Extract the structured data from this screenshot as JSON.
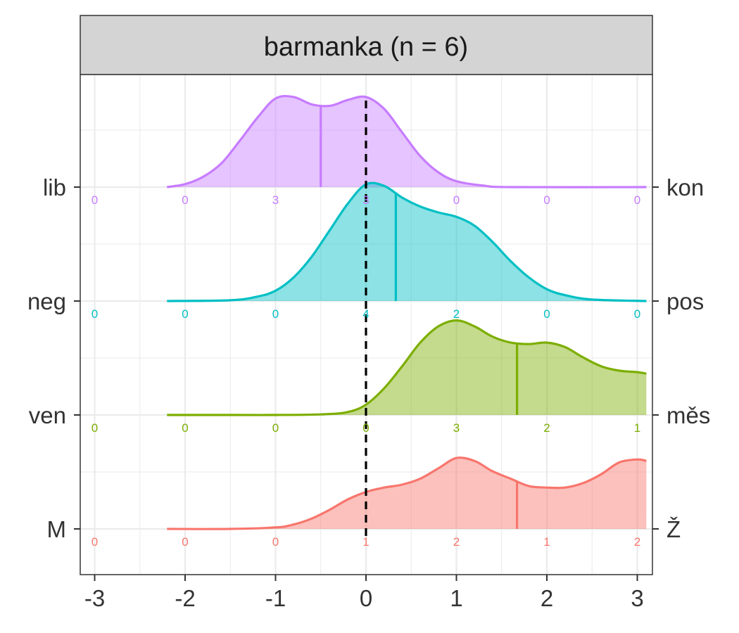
{
  "chart_data": {
    "type": "ridgeline",
    "title": "barmanka (n = 6)",
    "xlim": [
      -3,
      3
    ],
    "x_ticks": [
      "-3",
      "-2",
      "-1",
      "0",
      "1",
      "2",
      "3"
    ],
    "reference_line": 0,
    "grid": true,
    "series": [
      {
        "left_label": "M",
        "right_label": "Ž",
        "color": "#F8766D",
        "mean": 1.67,
        "density_points": [
          [
            -2.2,
            0
          ],
          [
            -1.5,
            0
          ],
          [
            -1,
            0.01
          ],
          [
            -0.8,
            0.03
          ],
          [
            -0.6,
            0.07
          ],
          [
            -0.4,
            0.13
          ],
          [
            -0.2,
            0.2
          ],
          [
            0,
            0.25
          ],
          [
            0.2,
            0.28
          ],
          [
            0.4,
            0.3
          ],
          [
            0.6,
            0.34
          ],
          [
            0.8,
            0.41
          ],
          [
            1.0,
            0.48
          ],
          [
            1.2,
            0.46
          ],
          [
            1.4,
            0.39
          ],
          [
            1.6,
            0.34
          ],
          [
            1.8,
            0.29
          ],
          [
            2.0,
            0.28
          ],
          [
            2.2,
            0.28
          ],
          [
            2.4,
            0.31
          ],
          [
            2.6,
            0.37
          ],
          [
            2.8,
            0.45
          ],
          [
            3.0,
            0.47
          ],
          [
            3.1,
            0.46
          ]
        ],
        "counts": [
          "0",
          "0",
          "0",
          "1",
          "2",
          "1",
          "2"
        ]
      },
      {
        "left_label": "ven",
        "right_label": "měs",
        "color": "#7CAE00",
        "mean": 1.67,
        "density_points": [
          [
            -2.2,
            0
          ],
          [
            -1.5,
            0
          ],
          [
            -1,
            0
          ],
          [
            -0.5,
            0.004
          ],
          [
            -0.2,
            0.02
          ],
          [
            0,
            0.07
          ],
          [
            0.2,
            0.18
          ],
          [
            0.4,
            0.33
          ],
          [
            0.6,
            0.49
          ],
          [
            0.8,
            0.6
          ],
          [
            1.0,
            0.64
          ],
          [
            1.2,
            0.6
          ],
          [
            1.4,
            0.53
          ],
          [
            1.6,
            0.49
          ],
          [
            1.8,
            0.48
          ],
          [
            2.0,
            0.49
          ],
          [
            2.2,
            0.46
          ],
          [
            2.4,
            0.39
          ],
          [
            2.6,
            0.33
          ],
          [
            2.8,
            0.3
          ],
          [
            3.0,
            0.29
          ],
          [
            3.1,
            0.28
          ]
        ],
        "counts": [
          "0",
          "0",
          "0",
          "0",
          "3",
          "2",
          "1"
        ]
      },
      {
        "left_label": "neg",
        "right_label": "pos",
        "color": "#00BFC4",
        "mean": 0.33,
        "density_points": [
          [
            -2.2,
            0
          ],
          [
            -1.5,
            0.005
          ],
          [
            -1.2,
            0.03
          ],
          [
            -1,
            0.07
          ],
          [
            -0.8,
            0.16
          ],
          [
            -0.6,
            0.3
          ],
          [
            -0.4,
            0.48
          ],
          [
            -0.2,
            0.66
          ],
          [
            0,
            0.79
          ],
          [
            0.2,
            0.78
          ],
          [
            0.4,
            0.7
          ],
          [
            0.6,
            0.64
          ],
          [
            0.8,
            0.6
          ],
          [
            1.0,
            0.57
          ],
          [
            1.2,
            0.51
          ],
          [
            1.4,
            0.4
          ],
          [
            1.6,
            0.27
          ],
          [
            1.8,
            0.16
          ],
          [
            2.0,
            0.08
          ],
          [
            2.2,
            0.04
          ],
          [
            2.5,
            0.01
          ],
          [
            3.1,
            0
          ]
        ],
        "counts": [
          "0",
          "0",
          "0",
          "4",
          "2",
          "0",
          "0"
        ]
      },
      {
        "left_label": "lib",
        "right_label": "kon",
        "color": "#C77CFF",
        "mean": -0.5,
        "density_points": [
          [
            -2.2,
            0
          ],
          [
            -2.0,
            0.02
          ],
          [
            -1.8,
            0.07
          ],
          [
            -1.6,
            0.16
          ],
          [
            -1.4,
            0.31
          ],
          [
            -1.2,
            0.47
          ],
          [
            -1.0,
            0.6
          ],
          [
            -0.8,
            0.61
          ],
          [
            -0.6,
            0.56
          ],
          [
            -0.4,
            0.55
          ],
          [
            -0.2,
            0.59
          ],
          [
            0,
            0.61
          ],
          [
            0.2,
            0.53
          ],
          [
            0.4,
            0.37
          ],
          [
            0.6,
            0.21
          ],
          [
            0.8,
            0.1
          ],
          [
            1.0,
            0.04
          ],
          [
            1.3,
            0.01
          ],
          [
            1.6,
            0
          ],
          [
            3.1,
            0
          ]
        ],
        "counts": [
          "0",
          "0",
          "3",
          "3",
          "0",
          "0",
          "0"
        ]
      }
    ]
  }
}
